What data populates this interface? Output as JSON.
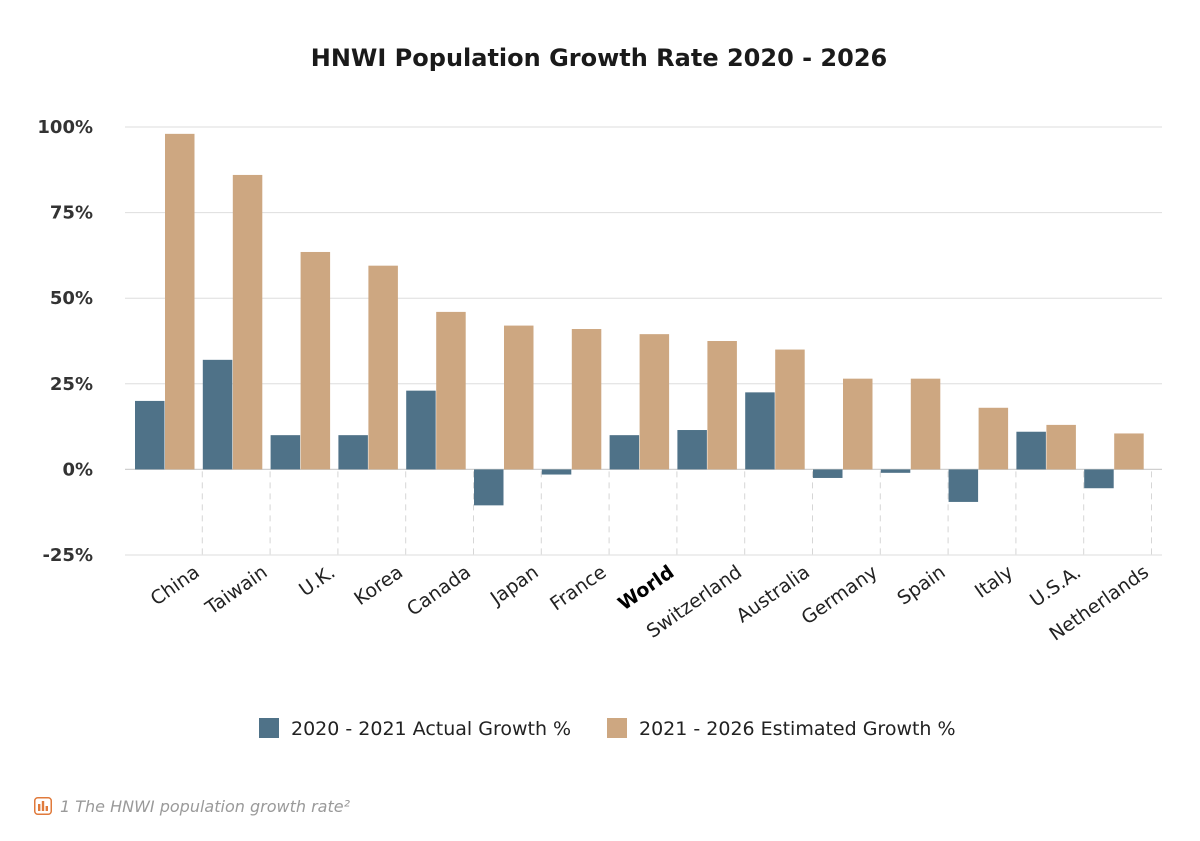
{
  "chart_data": {
    "type": "bar",
    "title": "HNWI Population Growth Rate 2020 - 2026",
    "xlabel": "",
    "ylabel": "",
    "ylim": [
      -25,
      100
    ],
    "yticks": [
      -25,
      0,
      25,
      50,
      75,
      100
    ],
    "ytick_labels": [
      "-25%",
      "0%",
      "25%",
      "50%",
      "75%",
      "100%"
    ],
    "grid": true,
    "legend_position": "bottom",
    "categories": [
      "China",
      "Taiwain",
      "U.K.",
      "Korea",
      "Canada",
      "Japan",
      "France",
      "World",
      "Switzerland",
      "Australia",
      "Germany",
      "Spain",
      "Italy",
      "U.S.A.",
      "Netherlands"
    ],
    "highlight_category": "World",
    "series": [
      {
        "name": "2020 - 2021 Actual Growth %",
        "color": "#4f7288",
        "values": [
          20,
          32,
          10,
          10,
          23,
          -10.5,
          -1.5,
          10,
          11.5,
          22.5,
          -2.5,
          -1,
          -9.5,
          11,
          -5.5
        ]
      },
      {
        "name": "2021 - 2026 Estimated Growth %",
        "color": "#cda781",
        "values": [
          98,
          86,
          63.5,
          59.5,
          46,
          42,
          41,
          39.5,
          37.5,
          35,
          26.5,
          26.5,
          18,
          13,
          10.5
        ]
      }
    ]
  },
  "caption": {
    "icon": "bar-chart-icon",
    "text": "1  The HNWI population growth rate²"
  }
}
